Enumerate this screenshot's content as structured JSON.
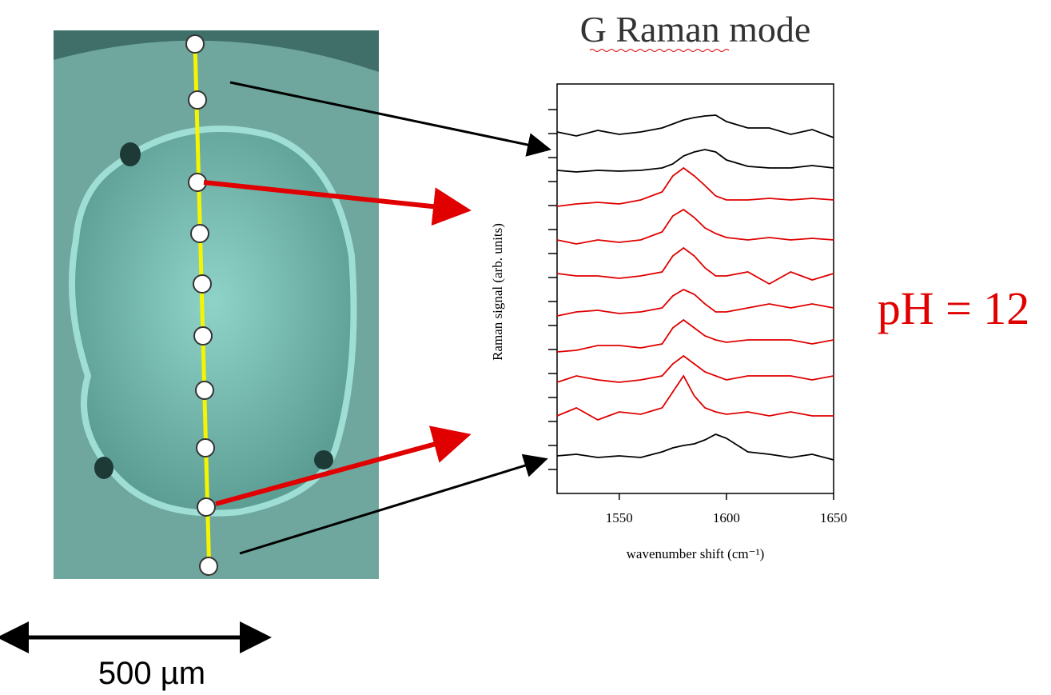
{
  "chart_data": {
    "type": "line",
    "title": "G Raman mode",
    "xlabel": "wavenumber shift (cm⁻¹)",
    "ylabel": "Raman signal (arb. units)",
    "annotations": [
      "pH = 12",
      "500 µm"
    ],
    "x": [
      1521,
      1530,
      1540,
      1550,
      1560,
      1570,
      1575,
      1580,
      1585,
      1590,
      1595,
      1600,
      1610,
      1620,
      1630,
      1640,
      1650
    ],
    "series": [
      {
        "color": "#000000",
        "values": [
          45.2,
          44.7,
          45.4,
          44.9,
          45.2,
          45.7,
          46.2,
          46.7,
          47.0,
          47.2,
          47.3,
          46.5,
          45.7,
          45.7,
          44.9,
          45.5,
          44.5
        ]
      },
      {
        "color": "#000000",
        "values": [
          40.4,
          40.2,
          40.4,
          40.3,
          40.4,
          40.7,
          41.2,
          42.2,
          42.7,
          43.0,
          42.7,
          41.7,
          40.9,
          40.7,
          40.7,
          41.0,
          40.7
        ]
      },
      {
        "color": "#e00000",
        "values": [
          35.9,
          36.2,
          36.4,
          36.2,
          36.7,
          37.7,
          39.7,
          40.7,
          39.7,
          38.5,
          37.2,
          36.7,
          36.7,
          36.9,
          36.7,
          36.9,
          36.7
        ]
      },
      {
        "color": "#e00000",
        "values": [
          31.7,
          31.2,
          31.7,
          31.4,
          31.7,
          32.7,
          34.7,
          35.5,
          34.5,
          33.2,
          32.5,
          32.0,
          31.7,
          32.0,
          31.7,
          31.9,
          31.7
        ]
      },
      {
        "color": "#e00000",
        "values": [
          27.5,
          27.2,
          27.2,
          26.9,
          27.2,
          27.7,
          29.7,
          30.7,
          29.7,
          28.2,
          27.2,
          27.2,
          27.7,
          26.2,
          27.7,
          26.7,
          27.5
        ]
      },
      {
        "color": "#e00000",
        "values": [
          22.2,
          22.7,
          22.9,
          22.5,
          22.7,
          23.2,
          24.7,
          25.5,
          24.9,
          23.7,
          22.7,
          22.7,
          23.2,
          23.7,
          23.2,
          23.7,
          23.2
        ]
      },
      {
        "color": "#e00000",
        "values": [
          17.7,
          17.9,
          18.5,
          18.5,
          18.2,
          18.7,
          20.7,
          21.7,
          20.7,
          19.7,
          19.2,
          18.9,
          19.2,
          19.2,
          19.2,
          18.7,
          19.2
        ]
      },
      {
        "color": "#e00000",
        "values": [
          13.9,
          14.7,
          14.2,
          13.9,
          14.2,
          14.7,
          16.2,
          17.2,
          16.2,
          15.2,
          14.7,
          14.2,
          14.7,
          14.7,
          14.7,
          14.2,
          14.7
        ]
      },
      {
        "color": "#e00000",
        "values": [
          9.7,
          10.7,
          9.2,
          10.2,
          9.9,
          10.7,
          12.7,
          14.7,
          12.2,
          10.7,
          10.2,
          9.9,
          10.2,
          9.7,
          10.2,
          9.7,
          9.7
        ]
      },
      {
        "color": "#000000",
        "values": [
          4.7,
          4.9,
          4.5,
          4.7,
          4.5,
          5.2,
          5.7,
          6.0,
          6.2,
          6.7,
          7.4,
          6.9,
          5.2,
          4.9,
          4.5,
          4.9,
          4.2
        ]
      }
    ],
    "xlim": [
      1521,
      1650
    ],
    "ylim": [
      0,
      51.2
    ],
    "xticks": [
      1550,
      1600,
      1650
    ],
    "yticks": [
      3,
      6,
      9,
      12,
      15,
      18,
      21,
      24,
      27,
      30,
      33,
      36,
      39,
      42,
      45,
      48
    ]
  }
}
